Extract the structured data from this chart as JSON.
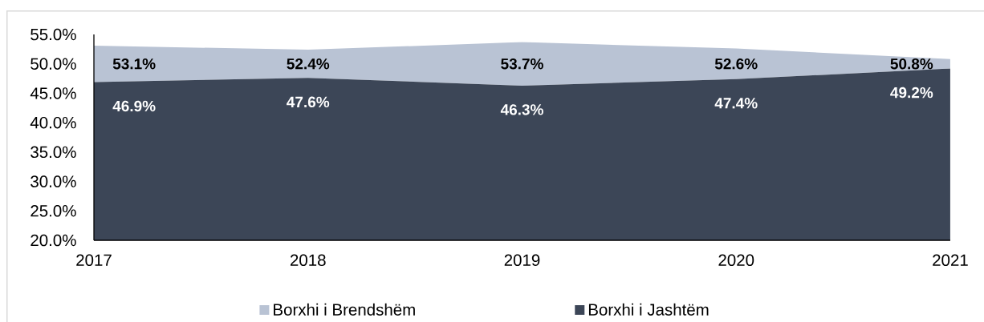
{
  "chart_data": {
    "type": "area",
    "categories": [
      "2017",
      "2018",
      "2019",
      "2020",
      "2021"
    ],
    "series": [
      {
        "name": "Borxhi i Brendshëm",
        "color": "#b9c3d4",
        "values": [
          53.1,
          52.4,
          53.7,
          52.6,
          50.8
        ],
        "value_labels": [
          "53.1%",
          "52.4%",
          "53.7%",
          "52.6%",
          "50.8%"
        ]
      },
      {
        "name": "Borxhi i Jashtëm",
        "color": "#3c4657",
        "values": [
          46.9,
          47.6,
          46.3,
          47.4,
          49.2
        ],
        "value_labels": [
          "46.9%",
          "47.6%",
          "46.3%",
          "47.4%",
          "49.2%"
        ]
      }
    ],
    "ylim": [
      20,
      55
    ],
    "yticks": [
      {
        "value": 20,
        "label": "20.0%"
      },
      {
        "value": 25,
        "label": "25.0%"
      },
      {
        "value": 30,
        "label": "30.0%"
      },
      {
        "value": 35,
        "label": "35.0%"
      },
      {
        "value": 40,
        "label": "40.0%"
      },
      {
        "value": 45,
        "label": "45.0%"
      },
      {
        "value": 50,
        "label": "50.0%"
      },
      {
        "value": 55,
        "label": "55.0%"
      }
    ],
    "legend": "bottom"
  }
}
